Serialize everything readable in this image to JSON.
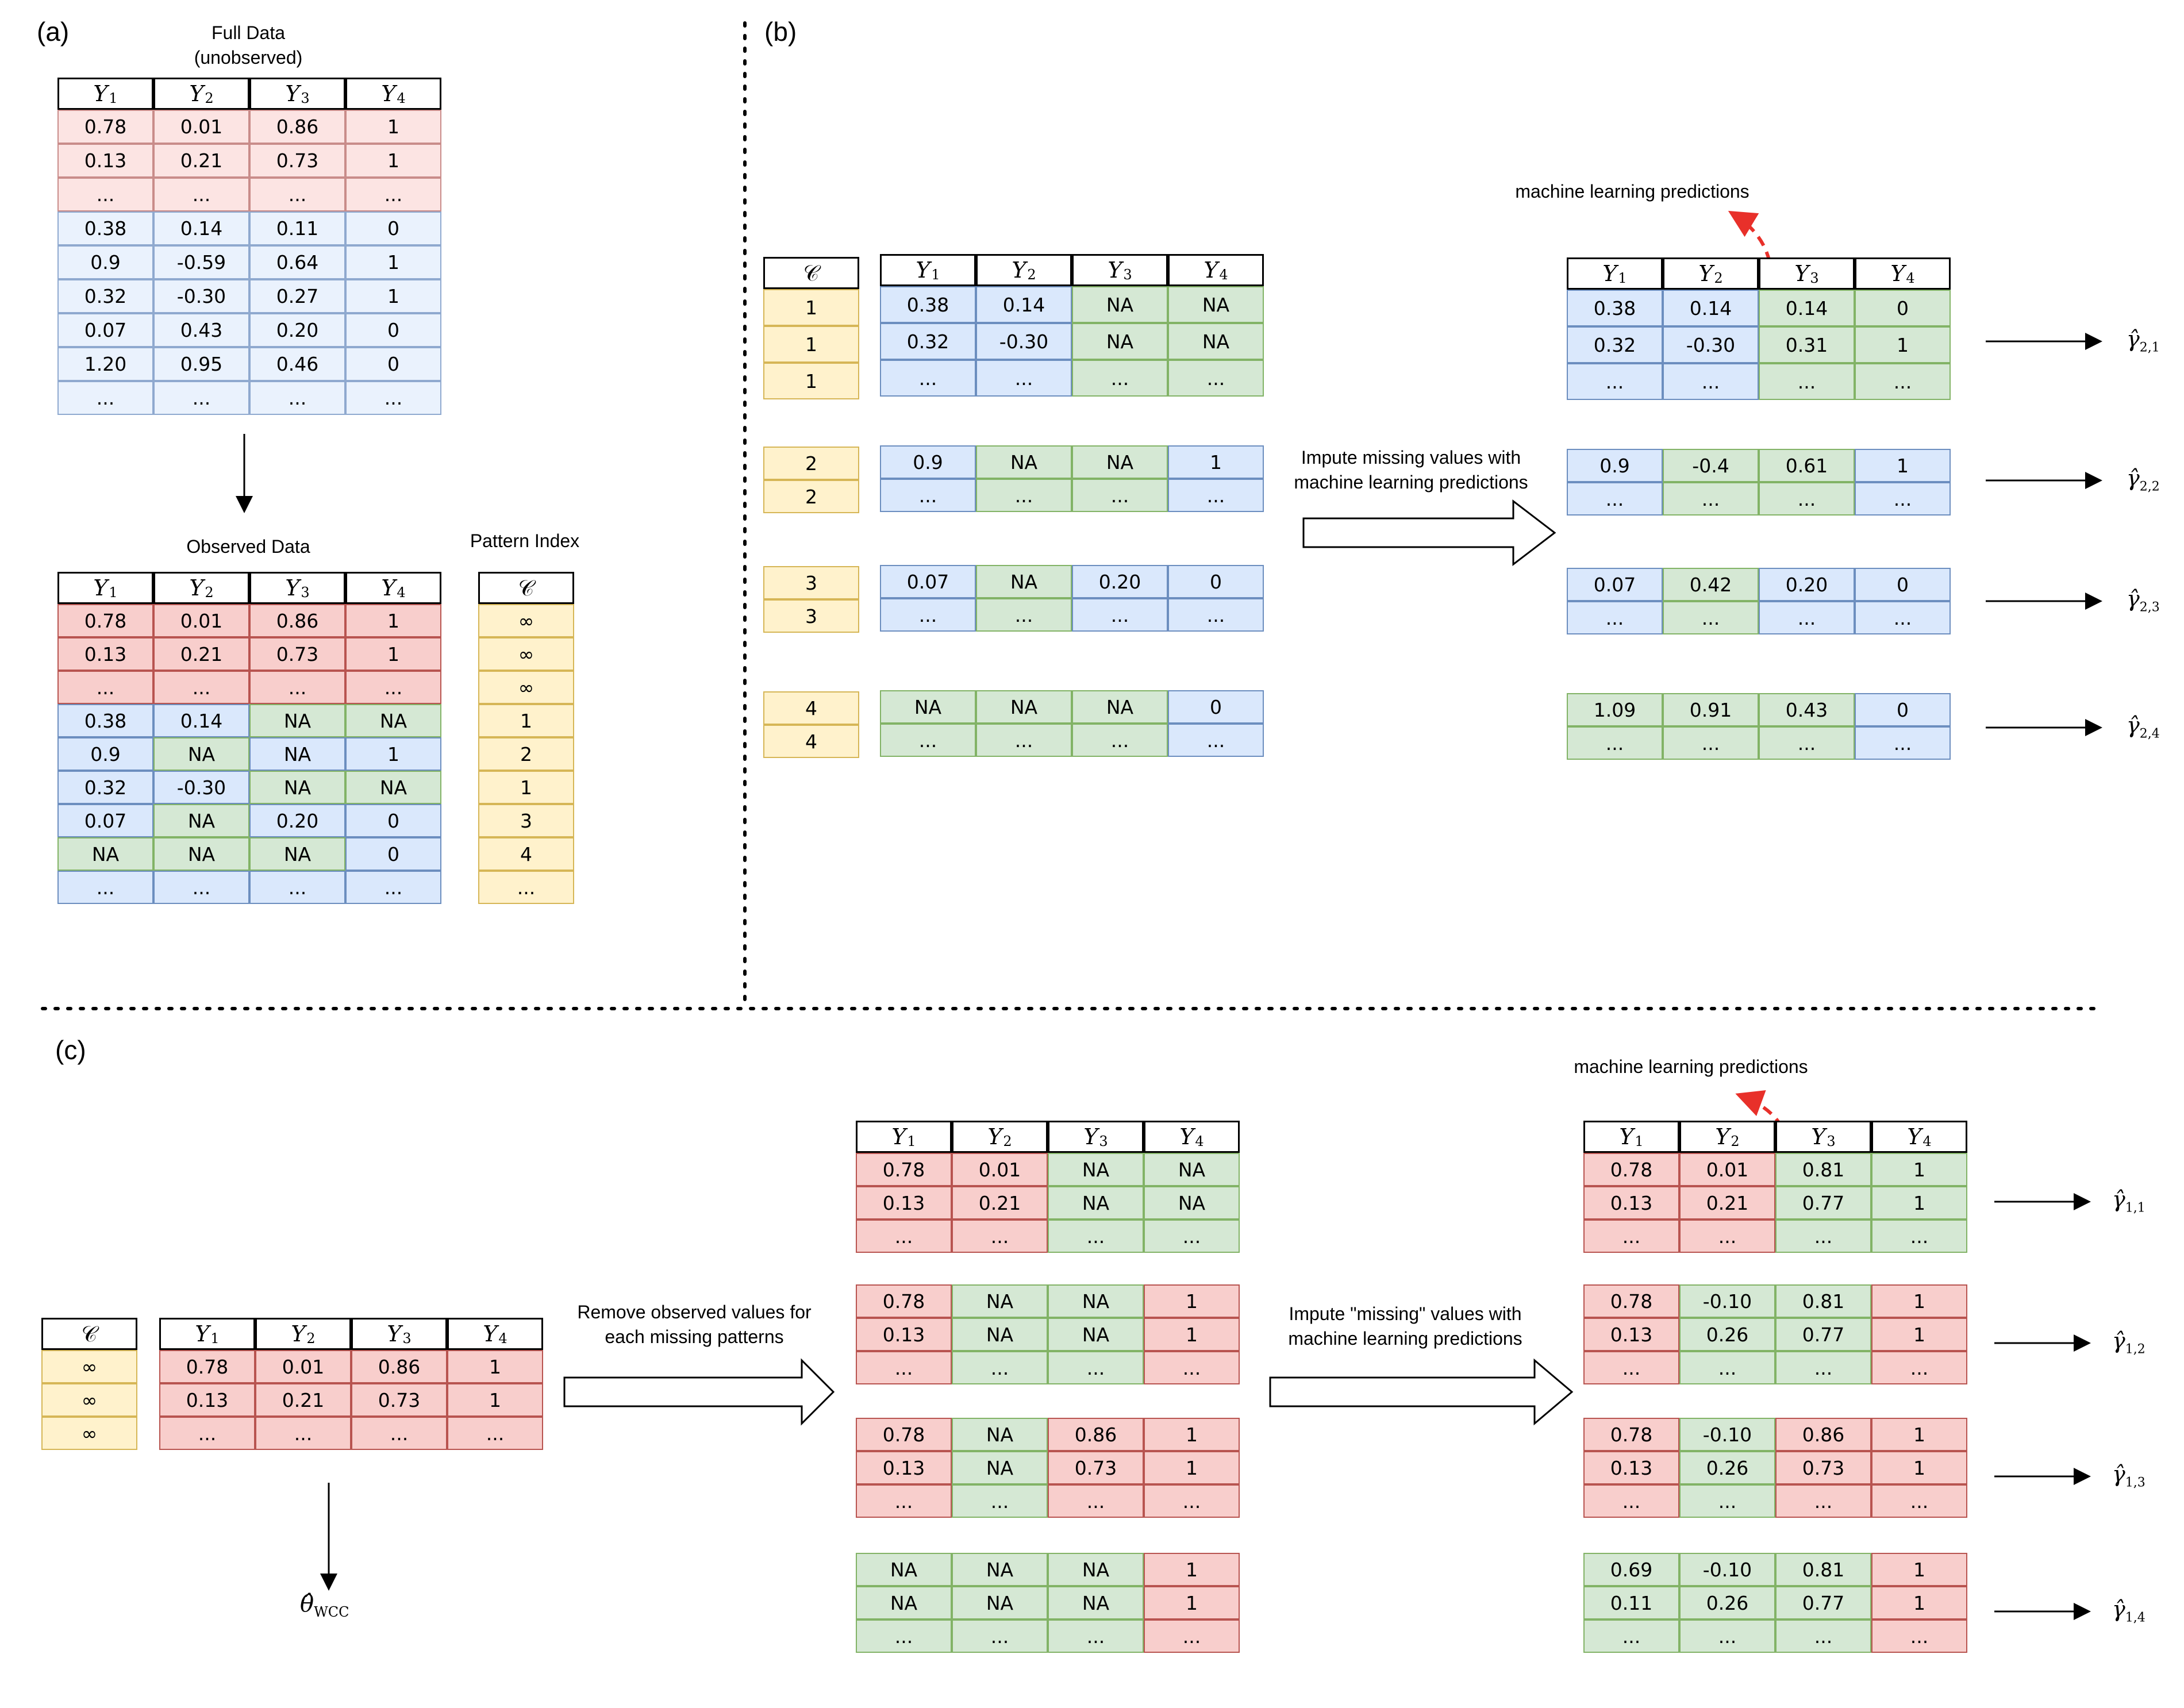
{
  "panels": {
    "a": "(a)",
    "b": "(b)",
    "c": "(c)"
  },
  "captions": {
    "full_data": "Full Data",
    "unobserved": "(unobserved)",
    "observed_data": "Observed Data",
    "pattern_index": "Pattern Index",
    "ml_predictions_b": "machine learning predictions",
    "ml_predictions_c": "machine learning predictions",
    "impute_b_line1": "Impute missing values with",
    "impute_b_line2": "machine learning predictions",
    "remove_line1": "Remove observed values for",
    "remove_line2": "each missing patterns",
    "impute_c_line1": "Impute \"missing\" values with",
    "impute_c_line2": "machine learning predictions"
  },
  "headers": {
    "y": "Y",
    "c": "𝒞"
  },
  "colors": {
    "red_fill": "#f8cecc",
    "blue_fill": "#dae8fc",
    "green_fill": "#d5e8d4",
    "yellow_fill": "#fff2cc",
    "arrow_red": "#e8302a"
  },
  "tables": {
    "full": [
      [
        "0.78",
        "0.01",
        "0.86",
        "1"
      ],
      [
        "0.13",
        "0.21",
        "0.73",
        "1"
      ],
      [
        "...",
        "...",
        "...",
        "..."
      ],
      [
        "0.38",
        "0.14",
        "0.11",
        "0"
      ],
      [
        "0.9",
        "-0.59",
        "0.64",
        "1"
      ],
      [
        "0.32",
        "-0.30",
        "0.27",
        "1"
      ],
      [
        "0.07",
        "0.43",
        "0.20",
        "0"
      ],
      [
        "1.20",
        "0.95",
        "0.46",
        "0"
      ],
      [
        "...",
        "...",
        "...",
        "..."
      ]
    ],
    "observed": [
      [
        "0.78",
        "0.01",
        "0.86",
        "1"
      ],
      [
        "0.13",
        "0.21",
        "0.73",
        "1"
      ],
      [
        "...",
        "...",
        "...",
        "..."
      ],
      [
        "0.38",
        "0.14",
        "NA",
        "NA"
      ],
      [
        "0.9",
        "NA",
        "NA",
        "1"
      ],
      [
        "0.32",
        "-0.30",
        "NA",
        "NA"
      ],
      [
        "0.07",
        "NA",
        "0.20",
        "0"
      ],
      [
        "NA",
        "NA",
        "NA",
        "0"
      ],
      [
        "...",
        "...",
        "...",
        "..."
      ]
    ],
    "pattern_index": [
      "∞",
      "∞",
      "∞",
      "1",
      "2",
      "1",
      "3",
      "4",
      "..."
    ],
    "b_c1": [
      "1",
      "1",
      "1"
    ],
    "b_c2": [
      "2",
      "2"
    ],
    "b_c3": [
      "3",
      "3"
    ],
    "b_c4": [
      "4",
      "4"
    ],
    "b_l1": [
      [
        "0.38",
        "0.14",
        "NA",
        "NA"
      ],
      [
        "0.32",
        "-0.30",
        "NA",
        "NA"
      ],
      [
        "...",
        "...",
        "...",
        "..."
      ]
    ],
    "b_l2": [
      [
        "0.9",
        "NA",
        "NA",
        "1"
      ],
      [
        "...",
        "...",
        "...",
        "..."
      ]
    ],
    "b_l3": [
      [
        "0.07",
        "NA",
        "0.20",
        "0"
      ],
      [
        "...",
        "...",
        "...",
        "..."
      ]
    ],
    "b_l4": [
      [
        "NA",
        "NA",
        "NA",
        "0"
      ],
      [
        "...",
        "...",
        "...",
        "..."
      ]
    ],
    "b_r1": [
      [
        "0.38",
        "0.14",
        "0.14",
        "0"
      ],
      [
        "0.32",
        "-0.30",
        "0.31",
        "1"
      ],
      [
        "...",
        "...",
        "...",
        "..."
      ]
    ],
    "b_r2": [
      [
        "0.9",
        "-0.4",
        "0.61",
        "1"
      ],
      [
        "...",
        "...",
        "...",
        "..."
      ]
    ],
    "b_r3": [
      [
        "0.07",
        "0.42",
        "0.20",
        "0"
      ],
      [
        "...",
        "...",
        "...",
        "..."
      ]
    ],
    "b_r4": [
      [
        "1.09",
        "0.91",
        "0.43",
        "0"
      ],
      [
        "...",
        "...",
        "...",
        "..."
      ]
    ],
    "c_c": [
      "∞",
      "∞",
      "∞"
    ],
    "c_full": [
      [
        "0.78",
        "0.01",
        "0.86",
        "1"
      ],
      [
        "0.13",
        "0.21",
        "0.73",
        "1"
      ],
      [
        "...",
        "...",
        "...",
        "..."
      ]
    ],
    "c_m1": [
      [
        "0.78",
        "0.01",
        "NA",
        "NA"
      ],
      [
        "0.13",
        "0.21",
        "NA",
        "NA"
      ],
      [
        "...",
        "...",
        "...",
        "..."
      ]
    ],
    "c_m2": [
      [
        "0.78",
        "NA",
        "NA",
        "1"
      ],
      [
        "0.13",
        "NA",
        "NA",
        "1"
      ],
      [
        "...",
        "...",
        "...",
        "..."
      ]
    ],
    "c_m3": [
      [
        "0.78",
        "NA",
        "0.86",
        "1"
      ],
      [
        "0.13",
        "NA",
        "0.73",
        "1"
      ],
      [
        "...",
        "...",
        "...",
        "..."
      ]
    ],
    "c_m4": [
      [
        "NA",
        "NA",
        "NA",
        "1"
      ],
      [
        "NA",
        "NA",
        "NA",
        "1"
      ],
      [
        "...",
        "...",
        "...",
        "..."
      ]
    ],
    "c_r1": [
      [
        "0.78",
        "0.01",
        "0.81",
        "1"
      ],
      [
        "0.13",
        "0.21",
        "0.77",
        "1"
      ],
      [
        "...",
        "...",
        "...",
        "..."
      ]
    ],
    "c_r2": [
      [
        "0.78",
        "-0.10",
        "0.81",
        "1"
      ],
      [
        "0.13",
        "0.26",
        "0.77",
        "1"
      ],
      [
        "...",
        "...",
        "...",
        "..."
      ]
    ],
    "c_r3": [
      [
        "0.78",
        "-0.10",
        "0.86",
        "1"
      ],
      [
        "0.13",
        "0.26",
        "0.73",
        "1"
      ],
      [
        "...",
        "...",
        "...",
        "..."
      ]
    ],
    "c_r4": [
      [
        "0.69",
        "-0.10",
        "0.81",
        "1"
      ],
      [
        "0.11",
        "0.26",
        "0.77",
        "1"
      ],
      [
        "...",
        "...",
        "...",
        "..."
      ]
    ]
  },
  "outputs": {
    "gamma_symbol": "γ̂",
    "b": [
      "2,1",
      "2,2",
      "2,3",
      "2,4"
    ],
    "c": [
      "1,1",
      "1,2",
      "1,3",
      "1,4"
    ],
    "theta_symbol": "θ̂",
    "theta_sub": "WCC"
  }
}
